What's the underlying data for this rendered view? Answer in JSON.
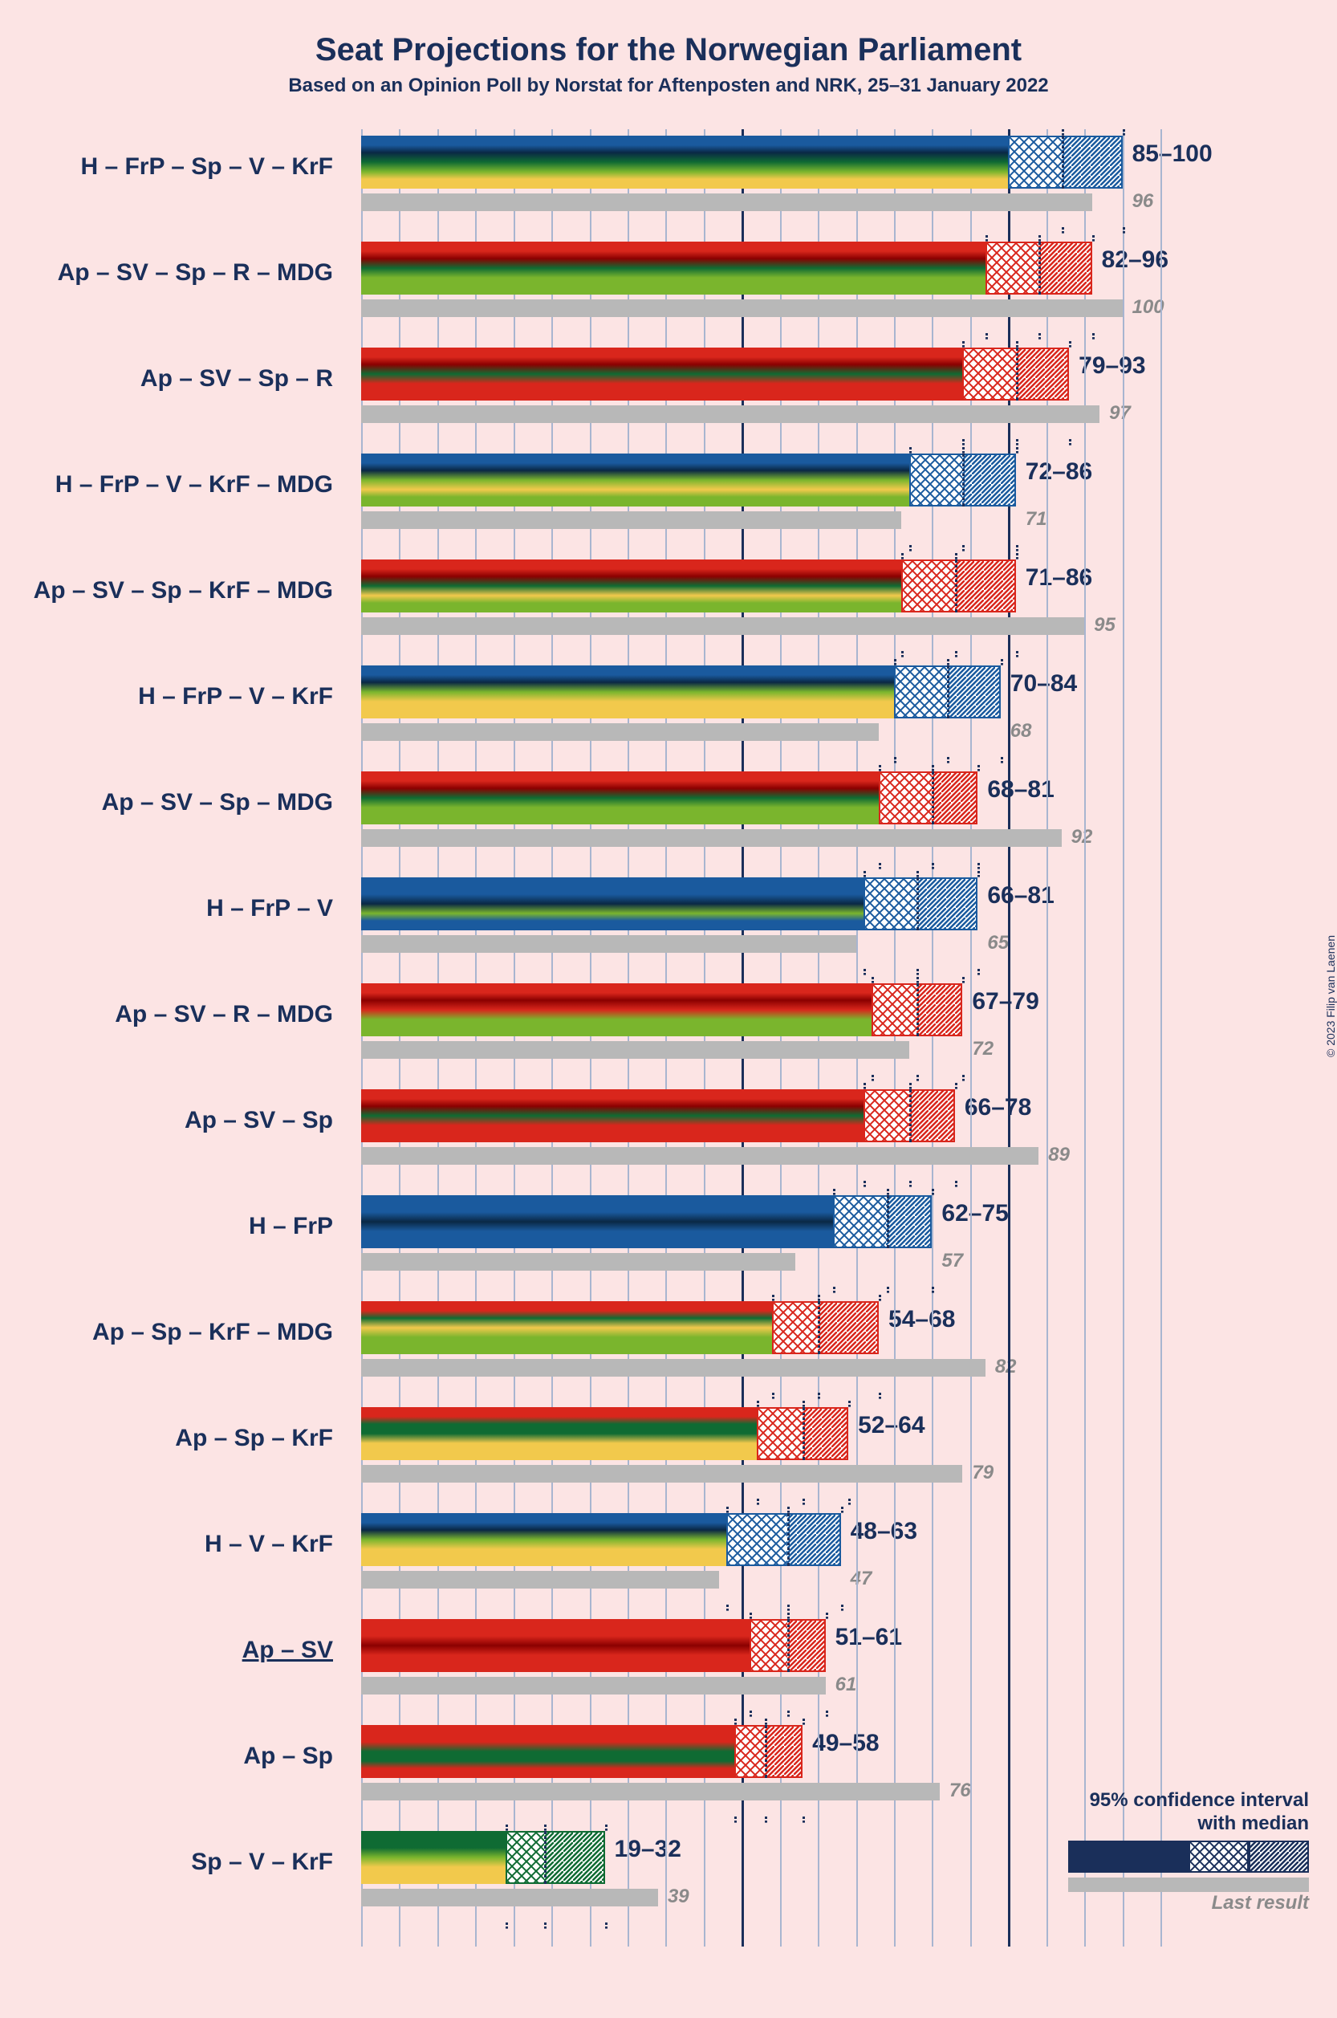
{
  "title": "Seat Projections for the Norwegian Parliament",
  "subtitle": "Based on an Opinion Poll by Norstat for Aftenposten and NRK, 25–31 January 2022",
  "copyright": "© 2023 Filip van Laenen",
  "axis": {
    "max": 105,
    "tick_step": 5,
    "major": [
      50,
      85
    ],
    "majority": 85
  },
  "colors": {
    "bg": "#fce4e4",
    "text": "#1a2f5a",
    "grid": "#a8b5d0",
    "grid_major": "#1a2f5a",
    "last": "#b8b8b8",
    "last_text": "#8a8a8a",
    "blue": "#1a5a9e",
    "darkblue": "#0a2845",
    "green_d": "#0f6b33",
    "green_l": "#7ab52d",
    "yellow": "#f2c94c",
    "red": "#d9261c",
    "darkred": "#8b0000"
  },
  "legend": {
    "title1": "95% confidence interval",
    "title2": "with median",
    "last": "Last result"
  },
  "coalitions": [
    {
      "label": "H – FrP – Sp – V – KrF",
      "low": 85,
      "high": 100,
      "median": 92,
      "last": 96,
      "gradient": [
        "#1a5a9e",
        "#0a2845",
        "#0f6b33",
        "#7ab52d",
        "#f2c94c"
      ],
      "border": "#1a5a9e"
    },
    {
      "label": "Ap – SV – Sp – R – MDG",
      "low": 82,
      "high": 96,
      "median": 89,
      "last": 100,
      "gradient": [
        "#d9261c",
        "#8b0000",
        "#0f6b33",
        "#7ab52d",
        "#7ab52d"
      ],
      "border": "#d9261c"
    },
    {
      "label": "Ap – SV – Sp – R",
      "low": 79,
      "high": 93,
      "median": 86,
      "last": 97,
      "gradient": [
        "#d9261c",
        "#8b0000",
        "#0f6b33",
        "#d9261c",
        "#d9261c"
      ],
      "border": "#d9261c"
    },
    {
      "label": "H – FrP – V – KrF – MDG",
      "low": 72,
      "high": 86,
      "median": 79,
      "last": 71,
      "gradient": [
        "#1a5a9e",
        "#0a2845",
        "#7ab52d",
        "#f2c94c",
        "#7ab52d"
      ],
      "border": "#1a5a9e"
    },
    {
      "label": "Ap – SV – Sp – KrF – MDG",
      "low": 71,
      "high": 86,
      "median": 78,
      "last": 95,
      "gradient": [
        "#d9261c",
        "#8b0000",
        "#0f6b33",
        "#f2c94c",
        "#7ab52d"
      ],
      "border": "#d9261c"
    },
    {
      "label": "H – FrP – V – KrF",
      "low": 70,
      "high": 84,
      "median": 77,
      "last": 68,
      "gradient": [
        "#1a5a9e",
        "#0a2845",
        "#7ab52d",
        "#f2c94c",
        "#f2c94c"
      ],
      "border": "#1a5a9e"
    },
    {
      "label": "Ap – SV – Sp – MDG",
      "low": 68,
      "high": 81,
      "median": 75,
      "last": 92,
      "gradient": [
        "#d9261c",
        "#8b0000",
        "#0f6b33",
        "#7ab52d",
        "#7ab52d"
      ],
      "border": "#d9261c"
    },
    {
      "label": "H – FrP – V",
      "low": 66,
      "high": 81,
      "median": 73,
      "last": 65,
      "gradient": [
        "#1a5a9e",
        "#1a5a9e",
        "#0a2845",
        "#7ab52d",
        "#1a5a9e"
      ],
      "border": "#1a5a9e"
    },
    {
      "label": "Ap – SV – R – MDG",
      "low": 67,
      "high": 79,
      "median": 73,
      "last": 72,
      "gradient": [
        "#d9261c",
        "#8b0000",
        "#d9261c",
        "#7ab52d",
        "#7ab52d"
      ],
      "border": "#d9261c"
    },
    {
      "label": "Ap – SV – Sp",
      "low": 66,
      "high": 78,
      "median": 72,
      "last": 89,
      "gradient": [
        "#d9261c",
        "#8b0000",
        "#0f6b33",
        "#d9261c",
        "#d9261c"
      ],
      "border": "#d9261c"
    },
    {
      "label": "H – FrP",
      "low": 62,
      "high": 75,
      "median": 69,
      "last": 57,
      "gradient": [
        "#1a5a9e",
        "#1a5a9e",
        "#0a2845",
        "#1a5a9e",
        "#1a5a9e"
      ],
      "border": "#1a5a9e"
    },
    {
      "label": "Ap – Sp – KrF – MDG",
      "low": 54,
      "high": 68,
      "median": 60,
      "last": 82,
      "gradient": [
        "#d9261c",
        "#0f6b33",
        "#f2c94c",
        "#7ab52d",
        "#7ab52d"
      ],
      "border": "#d9261c"
    },
    {
      "label": "Ap – Sp – KrF",
      "low": 52,
      "high": 64,
      "median": 58,
      "last": 79,
      "gradient": [
        "#d9261c",
        "#0f6b33",
        "#0f6b33",
        "#f2c94c",
        "#f2c94c"
      ],
      "border": "#d9261c"
    },
    {
      "label": "H – V – KrF",
      "low": 48,
      "high": 63,
      "median": 56,
      "last": 47,
      "gradient": [
        "#1a5a9e",
        "#0a2845",
        "#7ab52d",
        "#f2c94c",
        "#f2c94c"
      ],
      "border": "#1a5a9e"
    },
    {
      "label": "Ap – SV",
      "low": 51,
      "high": 61,
      "median": 56,
      "last": 61,
      "underline": true,
      "gradient": [
        "#d9261c",
        "#d9261c",
        "#8b0000",
        "#d9261c",
        "#d9261c"
      ],
      "border": "#d9261c"
    },
    {
      "label": "Ap – Sp",
      "low": 49,
      "high": 58,
      "median": 53,
      "last": 76,
      "gradient": [
        "#d9261c",
        "#d9261c",
        "#0f6b33",
        "#0f6b33",
        "#d9261c"
      ],
      "border": "#d9261c"
    },
    {
      "label": "Sp – V – KrF",
      "low": 19,
      "high": 32,
      "median": 24,
      "last": 39,
      "gradient": [
        "#0f6b33",
        "#0f6b33",
        "#7ab52d",
        "#f2c94c",
        "#f2c94c"
      ],
      "border": "#0f6b33"
    }
  ]
}
